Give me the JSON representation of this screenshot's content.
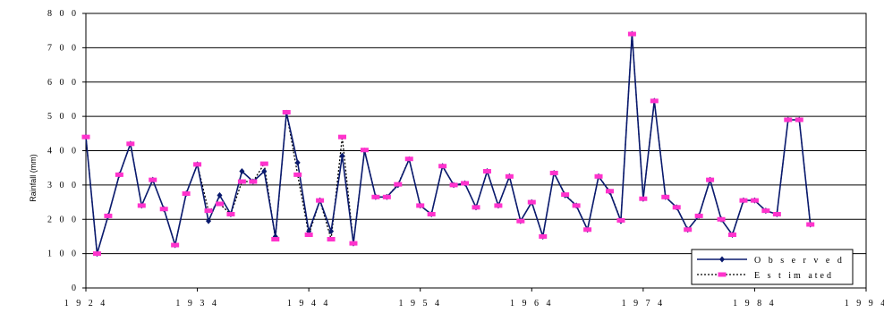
{
  "chart_data": {
    "type": "line",
    "ylabel": "Rainfall (mm)",
    "xlabel": "",
    "title": "",
    "xlim": [
      1924,
      1994
    ],
    "ylim": [
      0,
      800
    ],
    "x_ticks": [
      1924,
      1934,
      1944,
      1954,
      1964,
      1974,
      1984,
      1994
    ],
    "y_ticks": [
      0,
      100,
      200,
      300,
      400,
      500,
      600,
      700,
      800
    ],
    "x_tick_labels": [
      "1 9 2 4",
      "1 9 3 4",
      "1 9 4 4",
      "1 9 5 4",
      "1 9 6 4",
      "1 9 7 4",
      "1 9 8 4",
      "1 9 9 4"
    ],
    "y_tick_labels": [
      "0",
      "1 0 0",
      "2 0 0",
      "3 0 0",
      "4 0 0",
      "5 0 0",
      "6 0 0",
      "7 0 0",
      "8 0 0"
    ],
    "grid": "horizontal",
    "legend_position": "bottom-right",
    "x": [
      1924,
      1925,
      1926,
      1927,
      1928,
      1929,
      1930,
      1931,
      1932,
      1933,
      1934,
      1935,
      1936,
      1937,
      1938,
      1939,
      1940,
      1941,
      1942,
      1943,
      1944,
      1945,
      1946,
      1947,
      1948,
      1949,
      1950,
      1951,
      1952,
      1953,
      1954,
      1955,
      1956,
      1957,
      1958,
      1959,
      1960,
      1961,
      1962,
      1963,
      1964,
      1965,
      1966,
      1967,
      1968,
      1969,
      1970,
      1971,
      1972,
      1973,
      1974,
      1975,
      1976,
      1977,
      1978,
      1979,
      1980,
      1981,
      1982,
      1983,
      1984,
      1985,
      1986,
      1987,
      1988,
      1989
    ],
    "series": [
      {
        "name": "O b s e r v e d",
        "color": "#0a1a6e",
        "style": "solid",
        "marker": "diamond",
        "values": [
          440,
          100,
          210,
          330,
          420,
          240,
          315,
          230,
          125,
          275,
          360,
          195,
          270,
          215,
          340,
          310,
          340,
          150,
          510,
          365,
          165,
          255,
          165,
          385,
          130,
          400,
          265,
          265,
          300,
          375,
          240,
          215,
          355,
          300,
          305,
          235,
          340,
          240,
          325,
          195,
          250,
          150,
          335,
          270,
          240,
          170,
          325,
          280,
          195,
          740,
          260,
          545,
          265,
          235,
          170,
          210,
          315,
          200,
          155,
          255,
          255,
          225,
          215,
          490,
          490,
          185
        ]
      },
      {
        "name": "E s t im ated",
        "color": "#000000",
        "style": "dotted",
        "marker": "square",
        "marker_color": "#ff33cc",
        "values": [
          440,
          100,
          210,
          330,
          420,
          240,
          315,
          230,
          125,
          275,
          360,
          225,
          245,
          215,
          310,
          310,
          362,
          142,
          512,
          330,
          155,
          255,
          142,
          440,
          130,
          402,
          265,
          265,
          302,
          376,
          240,
          215,
          355,
          300,
          305,
          235,
          340,
          240,
          325,
          195,
          250,
          150,
          335,
          272,
          240,
          170,
          325,
          282,
          197,
          740,
          260,
          545,
          265,
          235,
          170,
          210,
          315,
          200,
          155,
          255,
          255,
          225,
          215,
          490,
          490,
          185
        ]
      }
    ]
  }
}
